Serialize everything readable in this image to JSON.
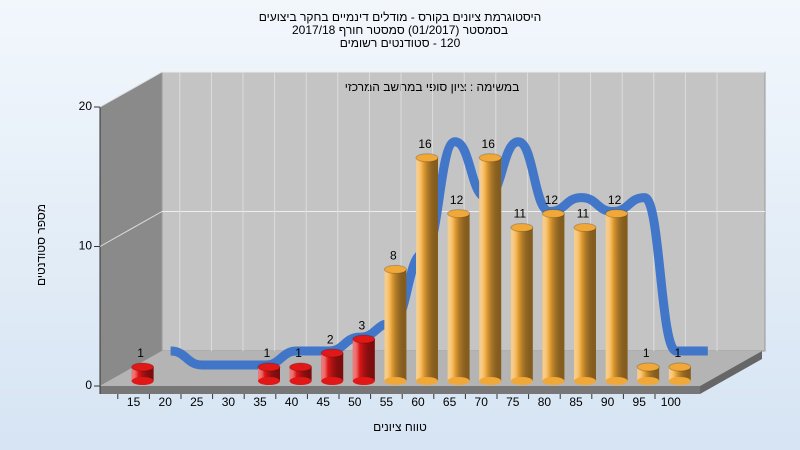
{
  "chart_data": {
    "type": "bar3d",
    "title": [
      "היסטוגרמת ציונים בקורס - מודלים דינמיים בחקר ביצועים",
      "בסמסטר  (01/2017)  סמסטר חורף 2017/18",
      "120 - סטודנטים רשומים"
    ],
    "subtitle": "במשימה : ציון סופי במחשב המרכזי",
    "x_label": "טווח ציונים",
    "y_label": "מספר סטודנטים",
    "categories": [
      "15",
      "20",
      "25",
      "30",
      "35",
      "40",
      "45",
      "50",
      "55",
      "60",
      "65",
      "70",
      "75",
      "80",
      "85",
      "90",
      "95",
      "100"
    ],
    "values": [
      1,
      0,
      0,
      0,
      1,
      1,
      2,
      3,
      8,
      16,
      12,
      16,
      11,
      12,
      11,
      12,
      1,
      1
    ],
    "colors": [
      "#e01818",
      "#e01818",
      "#e01818",
      "#e01818",
      "#e01818",
      "#e01818",
      "#e01818",
      "#e01818",
      "#f0a838",
      "#f0a838",
      "#f0a838",
      "#f0a838",
      "#f0a838",
      "#f0a838",
      "#f0a838",
      "#f0a838",
      "#f0a838",
      "#f0a838"
    ],
    "curve_color": "#3a72c8",
    "ylim": [
      0,
      20
    ],
    "yticks": [
      0,
      10,
      20
    ],
    "grid": true
  }
}
